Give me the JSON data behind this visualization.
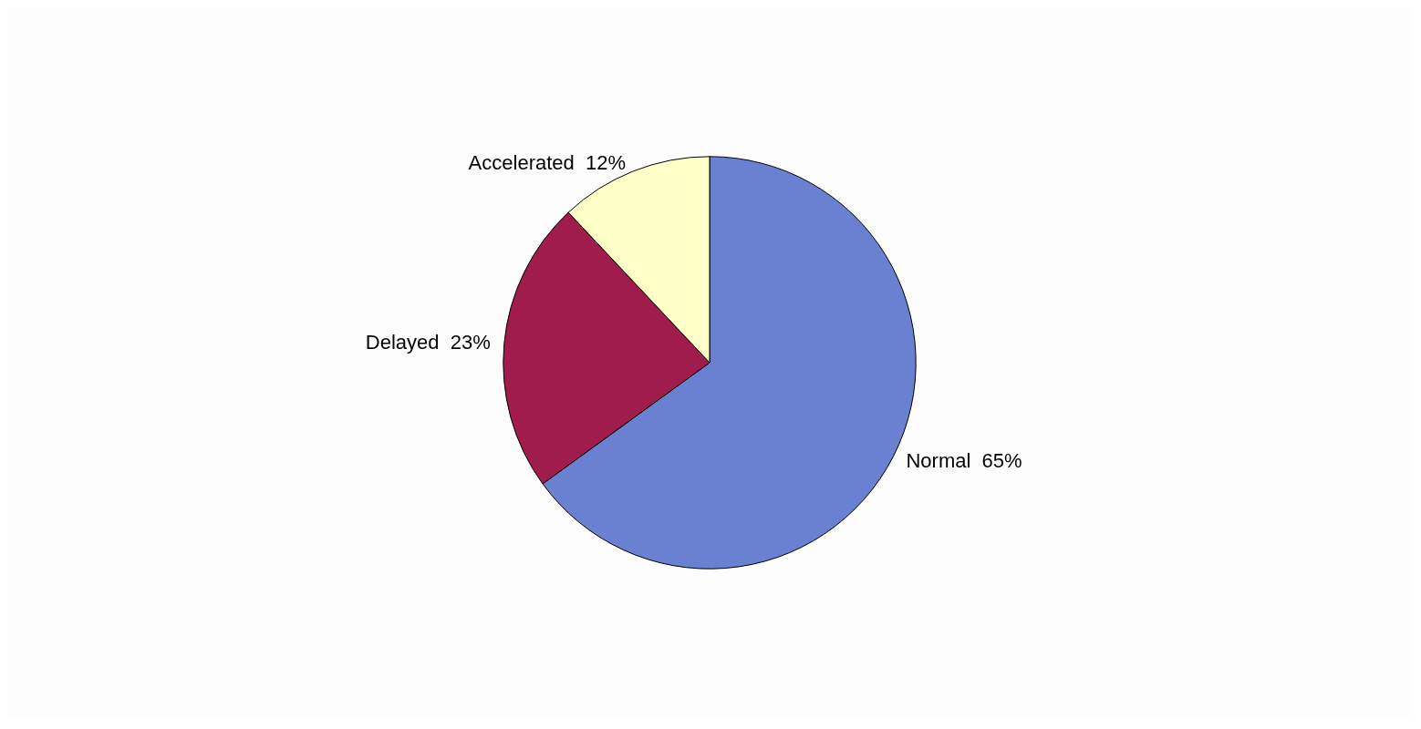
{
  "chart_data": {
    "type": "pie",
    "categories": [
      "Normal",
      "Delayed",
      "Accelerated"
    ],
    "values": [
      65,
      23,
      12
    ],
    "value_labels": [
      "65%",
      "23%",
      "12%"
    ],
    "colors": [
      "#6a80d0",
      "#a01c4c",
      "#ffffc8"
    ]
  }
}
